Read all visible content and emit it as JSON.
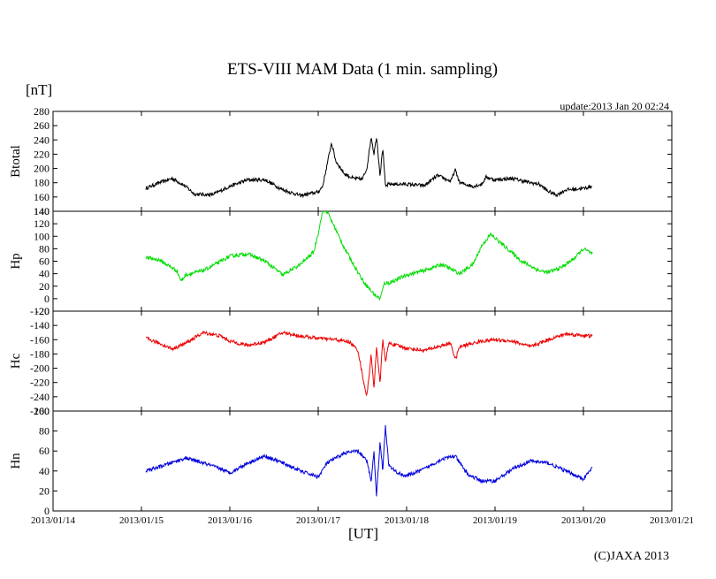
{
  "chart_data": {
    "type": "line",
    "title": "ETS-VIII MAM Data (1 min. sampling)",
    "unit_label": "[nT]",
    "update_text": "update:2013 Jan 20 02:24",
    "xlabel": "[UT]",
    "copyright": "(C)JAXA 2013",
    "x_ticks": [
      "2013/01/14",
      "2013/01/15",
      "2013/01/16",
      "2013/01/17",
      "2013/01/18",
      "2013/01/19",
      "2013/01/20",
      "2013/01/21"
    ],
    "xlim": [
      0,
      7
    ],
    "panels": [
      {
        "name": "Btotal",
        "ylabel": "Btotal",
        "color": "#000000",
        "ylim": [
          140,
          280
        ],
        "y_ticks": [
          140,
          160,
          180,
          200,
          220,
          240,
          260,
          280
        ],
        "x": [
          1.05,
          1.2,
          1.35,
          1.5,
          1.6,
          1.8,
          2.0,
          2.2,
          2.4,
          2.6,
          2.8,
          3.0,
          3.05,
          3.1,
          3.15,
          3.2,
          3.3,
          3.4,
          3.5,
          3.55,
          3.6,
          3.63,
          3.66,
          3.7,
          3.73,
          3.76,
          3.8,
          4.0,
          4.2,
          4.35,
          4.5,
          4.55,
          4.6,
          4.75,
          4.85,
          4.9,
          5.0,
          5.2,
          5.4,
          5.5,
          5.6,
          5.7,
          5.8,
          6.0,
          6.1
        ],
        "values": [
          172,
          180,
          186,
          175,
          164,
          163,
          175,
          184,
          184,
          170,
          162,
          167,
          175,
          205,
          236,
          210,
          192,
          186,
          185,
          200,
          245,
          220,
          245,
          190,
          230,
          175,
          178,
          178,
          176,
          190,
          182,
          198,
          180,
          175,
          178,
          188,
          184,
          186,
          180,
          178,
          168,
          163,
          170,
          172,
          175
        ],
        "noise": 2.5
      },
      {
        "name": "Hp",
        "ylabel": "Hp",
        "color": "#00dd00",
        "ylim": [
          -20,
          140
        ],
        "y_ticks": [
          -20,
          0,
          20,
          40,
          60,
          80,
          100,
          120,
          140
        ],
        "x": [
          1.05,
          1.2,
          1.4,
          1.45,
          1.5,
          1.7,
          1.9,
          2.0,
          2.2,
          2.4,
          2.6,
          2.8,
          2.95,
          3.0,
          3.05,
          3.1,
          3.2,
          3.3,
          3.5,
          3.6,
          3.65,
          3.7,
          3.75,
          3.8,
          4.0,
          4.2,
          4.4,
          4.6,
          4.75,
          4.85,
          4.95,
          5.1,
          5.3,
          5.5,
          5.6,
          5.75,
          5.9,
          6.0,
          6.1
        ],
        "values": [
          66,
          62,
          45,
          28,
          38,
          45,
          60,
          68,
          72,
          60,
          38,
          55,
          75,
          105,
          140,
          140,
          110,
          80,
          30,
          12,
          5,
          0,
          25,
          25,
          38,
          45,
          55,
          40,
          55,
          85,
          103,
          85,
          60,
          45,
          42,
          50,
          65,
          80,
          72
        ],
        "noise": 3
      },
      {
        "name": "Hc",
        "ylabel": "Hc",
        "color": "#ee0000",
        "ylim": [
          -260,
          -120
        ],
        "y_ticks": [
          -260,
          -240,
          -220,
          -200,
          -180,
          -160,
          -140,
          -120
        ],
        "x": [
          1.05,
          1.2,
          1.35,
          1.5,
          1.7,
          1.9,
          2.0,
          2.2,
          2.4,
          2.6,
          2.8,
          3.0,
          3.2,
          3.35,
          3.45,
          3.5,
          3.55,
          3.6,
          3.63,
          3.66,
          3.7,
          3.73,
          3.76,
          3.8,
          4.0,
          4.2,
          4.35,
          4.5,
          4.55,
          4.6,
          4.75,
          4.85,
          5.0,
          5.2,
          5.4,
          5.6,
          5.8,
          6.0,
          6.1
        ],
        "values": [
          -158,
          -165,
          -173,
          -165,
          -150,
          -155,
          -162,
          -168,
          -163,
          -150,
          -155,
          -158,
          -160,
          -163,
          -175,
          -210,
          -240,
          -180,
          -230,
          -170,
          -220,
          -160,
          -190,
          -165,
          -172,
          -175,
          -170,
          -165,
          -188,
          -170,
          -165,
          -162,
          -160,
          -162,
          -170,
          -160,
          -152,
          -154,
          -155
        ],
        "noise": 2.5
      },
      {
        "name": "Hn",
        "ylabel": "Hn",
        "color": "#0000dd",
        "ylim": [
          0,
          100
        ],
        "y_ticks": [
          0,
          20,
          40,
          60,
          80,
          100
        ],
        "x": [
          1.05,
          1.2,
          1.4,
          1.5,
          1.7,
          1.9,
          2.0,
          2.2,
          2.4,
          2.6,
          2.8,
          3.0,
          3.1,
          3.3,
          3.45,
          3.55,
          3.6,
          3.63,
          3.66,
          3.7,
          3.73,
          3.76,
          3.8,
          3.9,
          4.0,
          4.2,
          4.4,
          4.55,
          4.6,
          4.7,
          4.85,
          5.0,
          5.2,
          5.4,
          5.6,
          5.8,
          6.0,
          6.1
        ],
        "values": [
          40,
          44,
          50,
          53,
          48,
          42,
          38,
          48,
          55,
          48,
          40,
          34,
          48,
          58,
          60,
          50,
          30,
          60,
          15,
          70,
          40,
          85,
          45,
          38,
          35,
          42,
          52,
          55,
          48,
          36,
          30,
          30,
          42,
          50,
          48,
          40,
          32,
          43
        ],
        "noise": 1.8
      }
    ]
  }
}
